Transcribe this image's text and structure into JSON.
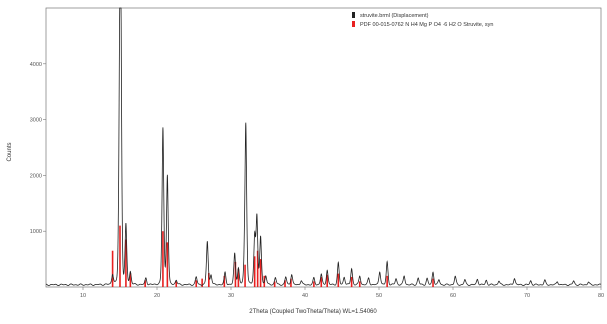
{
  "chart_data": {
    "type": "line",
    "xlabel": "2Theta (Coupled TwoTheta/Theta) WL=1.54060",
    "ylabel": "Counts",
    "xlim": [
      5,
      80
    ],
    "ylim": [
      0,
      5000
    ],
    "x_ticks": [
      "10",
      "20",
      "30",
      "40",
      "50",
      "60",
      "70",
      "80"
    ],
    "y_ticks": [
      "1000",
      "2000",
      "3000",
      "4000"
    ],
    "grid": false,
    "legend_position": "top-right",
    "series": [
      {
        "name": "struvite.brml (Displacement)",
        "color": "#222222",
        "style": "line",
        "peaks": [
          {
            "x": 14.0,
            "y": 220
          },
          {
            "x": 14.9,
            "y": 1150
          },
          {
            "x": 15.0,
            "y": 2400
          },
          {
            "x": 15.1,
            "y": 4400
          },
          {
            "x": 15.8,
            "y": 1100
          },
          {
            "x": 16.4,
            "y": 260
          },
          {
            "x": 18.5,
            "y": 160
          },
          {
            "x": 20.8,
            "y": 2850
          },
          {
            "x": 21.4,
            "y": 2000
          },
          {
            "x": 22.6,
            "y": 120
          },
          {
            "x": 25.3,
            "y": 180
          },
          {
            "x": 26.8,
            "y": 820
          },
          {
            "x": 27.3,
            "y": 220
          },
          {
            "x": 29.2,
            "y": 260
          },
          {
            "x": 30.5,
            "y": 600
          },
          {
            "x": 31.0,
            "y": 330
          },
          {
            "x": 31.8,
            "y": 250
          },
          {
            "x": 32.0,
            "y": 2900
          },
          {
            "x": 33.2,
            "y": 900
          },
          {
            "x": 33.5,
            "y": 1250
          },
          {
            "x": 34.0,
            "y": 900
          },
          {
            "x": 34.7,
            "y": 200
          },
          {
            "x": 36.0,
            "y": 170
          },
          {
            "x": 37.4,
            "y": 180
          },
          {
            "x": 38.2,
            "y": 230
          },
          {
            "x": 39.5,
            "y": 120
          },
          {
            "x": 41.2,
            "y": 160
          },
          {
            "x": 42.2,
            "y": 230
          },
          {
            "x": 43.0,
            "y": 300
          },
          {
            "x": 44.5,
            "y": 430
          },
          {
            "x": 45.3,
            "y": 180
          },
          {
            "x": 46.3,
            "y": 330
          },
          {
            "x": 47.4,
            "y": 200
          },
          {
            "x": 48.6,
            "y": 160
          },
          {
            "x": 50.1,
            "y": 280
          },
          {
            "x": 51.1,
            "y": 450
          },
          {
            "x": 52.3,
            "y": 150
          },
          {
            "x": 53.4,
            "y": 200
          },
          {
            "x": 55.3,
            "y": 160
          },
          {
            "x": 56.5,
            "y": 150
          },
          {
            "x": 57.3,
            "y": 270
          },
          {
            "x": 58.1,
            "y": 130
          },
          {
            "x": 60.3,
            "y": 190
          },
          {
            "x": 61.6,
            "y": 130
          },
          {
            "x": 63.3,
            "y": 140
          },
          {
            "x": 64.5,
            "y": 120
          },
          {
            "x": 66.2,
            "y": 110
          },
          {
            "x": 68.3,
            "y": 160
          },
          {
            "x": 70.5,
            "y": 110
          },
          {
            "x": 72.4,
            "y": 120
          },
          {
            "x": 74.1,
            "y": 100
          },
          {
            "x": 76.3,
            "y": 110
          },
          {
            "x": 78.3,
            "y": 90
          }
        ]
      },
      {
        "name": "PDF 00-015-0762 N H4 Mg P O4 ·6 H2 O Struvite, syn",
        "color": "#e82020",
        "style": "sticks",
        "sticks": [
          {
            "x": 14.0,
            "y": 650
          },
          {
            "x": 15.0,
            "y": 1100
          },
          {
            "x": 15.8,
            "y": 850
          },
          {
            "x": 16.4,
            "y": 250
          },
          {
            "x": 18.4,
            "y": 120
          },
          {
            "x": 20.8,
            "y": 1000
          },
          {
            "x": 21.4,
            "y": 800
          },
          {
            "x": 22.6,
            "y": 100
          },
          {
            "x": 25.3,
            "y": 120
          },
          {
            "x": 26.1,
            "y": 150
          },
          {
            "x": 27.0,
            "y": 250
          },
          {
            "x": 29.1,
            "y": 200
          },
          {
            "x": 30.6,
            "y": 450
          },
          {
            "x": 31.0,
            "y": 320
          },
          {
            "x": 31.9,
            "y": 400
          },
          {
            "x": 33.2,
            "y": 550
          },
          {
            "x": 33.6,
            "y": 650
          },
          {
            "x": 34.0,
            "y": 500
          },
          {
            "x": 34.5,
            "y": 200
          },
          {
            "x": 35.9,
            "y": 100
          },
          {
            "x": 37.3,
            "y": 120
          },
          {
            "x": 38.1,
            "y": 150
          },
          {
            "x": 41.2,
            "y": 100
          },
          {
            "x": 42.2,
            "y": 180
          },
          {
            "x": 43.0,
            "y": 220
          },
          {
            "x": 44.5,
            "y": 240
          },
          {
            "x": 46.3,
            "y": 180
          },
          {
            "x": 47.4,
            "y": 100
          },
          {
            "x": 51.1,
            "y": 200
          },
          {
            "x": 57.3,
            "y": 150
          }
        ]
      }
    ]
  }
}
